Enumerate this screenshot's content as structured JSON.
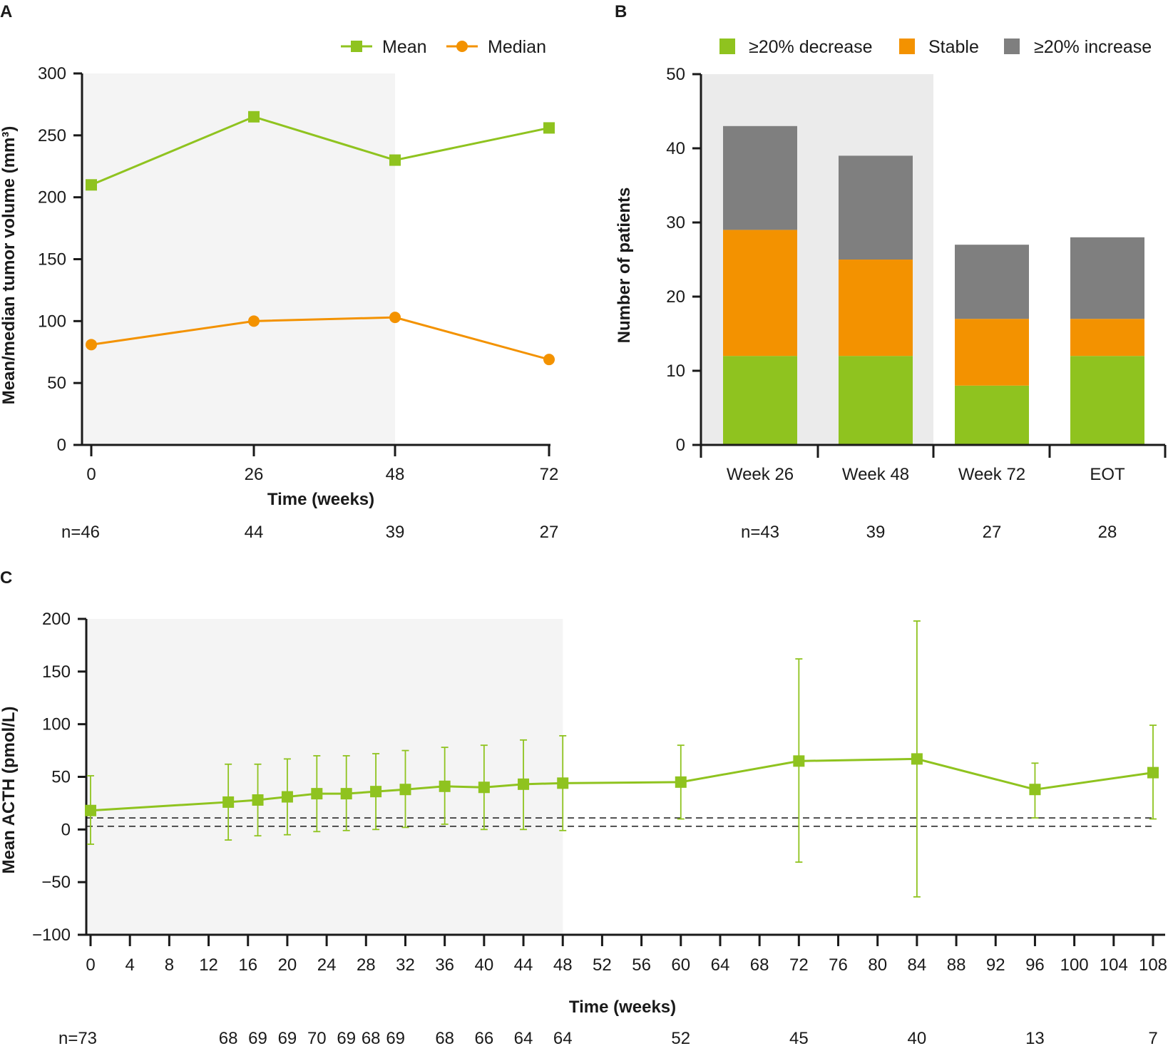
{
  "panels": {
    "a": {
      "letter": "A"
    },
    "b": {
      "letter": "B"
    },
    "c": {
      "letter": "C"
    }
  },
  "colors": {
    "green": "#8fc31f",
    "orange": "#f39200",
    "gray": "#7f7f7f",
    "shade_a": "#f4f4f4",
    "shade_b": "#ebebeb",
    "shade_c": "#f4f4f4"
  },
  "chart_data": [
    {
      "id": "A",
      "type": "line",
      "title": "",
      "xlabel": "Time (weeks)",
      "ylabel": "Mean/median tumor volume (mm³)",
      "x": [
        0,
        26,
        48,
        72
      ],
      "x_ticks": [
        "0",
        "26",
        "48",
        "72"
      ],
      "ylim": [
        0,
        300
      ],
      "y_ticks": [
        "0",
        "50",
        "100",
        "150",
        "200",
        "250",
        "300"
      ],
      "shaded_x_range": [
        0,
        48
      ],
      "series": [
        {
          "name": "Mean",
          "marker": "square",
          "color": "#8fc31f",
          "values": [
            210,
            265,
            230,
            256
          ]
        },
        {
          "name": "Median",
          "marker": "circle",
          "color": "#f39200",
          "values": [
            81,
            100,
            103,
            69
          ]
        }
      ],
      "n_labels": [
        "n=46",
        "44",
        "39",
        "27"
      ],
      "legend_position": "top-right"
    },
    {
      "id": "B",
      "type": "bar",
      "stacked": true,
      "title": "",
      "xlabel": "",
      "ylabel": "Number of patients",
      "categories": [
        "Week 26",
        "Week 48",
        "Week 72",
        "EOT"
      ],
      "ylim": [
        0,
        50
      ],
      "y_ticks": [
        "0",
        "10",
        "20",
        "30",
        "40",
        "50"
      ],
      "shaded_categories": [
        "Week 26",
        "Week 48"
      ],
      "series": [
        {
          "name": "≥20% decrease",
          "color": "#8fc31f",
          "values": [
            12,
            12,
            8,
            12
          ]
        },
        {
          "name": "Stable",
          "color": "#f39200",
          "values": [
            17,
            13,
            9,
            5
          ]
        },
        {
          "name": "≥20% increase",
          "color": "#7f7f7f",
          "values": [
            14,
            14,
            10,
            11
          ]
        }
      ],
      "n_labels": [
        "n=43",
        "39",
        "27",
        "28"
      ],
      "legend_position": "top"
    },
    {
      "id": "C",
      "type": "line",
      "title": "",
      "xlabel": "Time (weeks)",
      "ylabel": "Mean ACTH (pmol/L)",
      "xlim": [
        0,
        108
      ],
      "x_ticks": [
        "0",
        "4",
        "8",
        "12",
        "16",
        "20",
        "24",
        "28",
        "32",
        "36",
        "40",
        "44",
        "48",
        "52",
        "56",
        "60",
        "64",
        "68",
        "72",
        "76",
        "80",
        "84",
        "88",
        "92",
        "96",
        "100",
        "104",
        "108"
      ],
      "ylim": [
        -100,
        200
      ],
      "y_ticks": [
        "−100",
        "−50",
        "0",
        "50",
        "100",
        "150",
        "200"
      ],
      "shaded_x_range": [
        0,
        48
      ],
      "reference_lines": [
        3,
        11
      ],
      "series": [
        {
          "name": "Mean ACTH",
          "marker": "square",
          "color": "#8fc31f",
          "x": [
            0,
            14,
            17,
            20,
            23,
            26,
            29,
            32,
            36,
            40,
            44,
            48,
            60,
            72,
            84,
            96,
            108
          ],
          "values": [
            18,
            26,
            28,
            31,
            34,
            34,
            36,
            38,
            41,
            40,
            43,
            44,
            45,
            65,
            67,
            38,
            54
          ],
          "error_low": [
            -14,
            -10,
            -6,
            -5,
            -2,
            -1,
            0,
            2,
            5,
            0,
            0,
            -1,
            10,
            -31,
            -64,
            11,
            10
          ],
          "error_high": [
            51,
            62,
            62,
            67,
            70,
            70,
            72,
            75,
            78,
            80,
            85,
            89,
            80,
            162,
            198,
            63,
            99
          ]
        }
      ],
      "n_labels": [
        {
          "week": 0,
          "label": "n=73"
        },
        {
          "week": 14,
          "label": "68"
        },
        {
          "week": 17,
          "label": "69"
        },
        {
          "week": 20,
          "label": "69"
        },
        {
          "week": 23,
          "label": "70"
        },
        {
          "week": 26,
          "label": "69"
        },
        {
          "week": 28.5,
          "label": "68"
        },
        {
          "week": 31,
          "label": "69"
        },
        {
          "week": 36,
          "label": "68"
        },
        {
          "week": 40,
          "label": "66"
        },
        {
          "week": 44,
          "label": "64"
        },
        {
          "week": 48,
          "label": "64"
        },
        {
          "week": 60,
          "label": "52"
        },
        {
          "week": 72,
          "label": "45"
        },
        {
          "week": 84,
          "label": "40"
        },
        {
          "week": 96,
          "label": "13"
        },
        {
          "week": 108,
          "label": "7"
        }
      ]
    }
  ]
}
